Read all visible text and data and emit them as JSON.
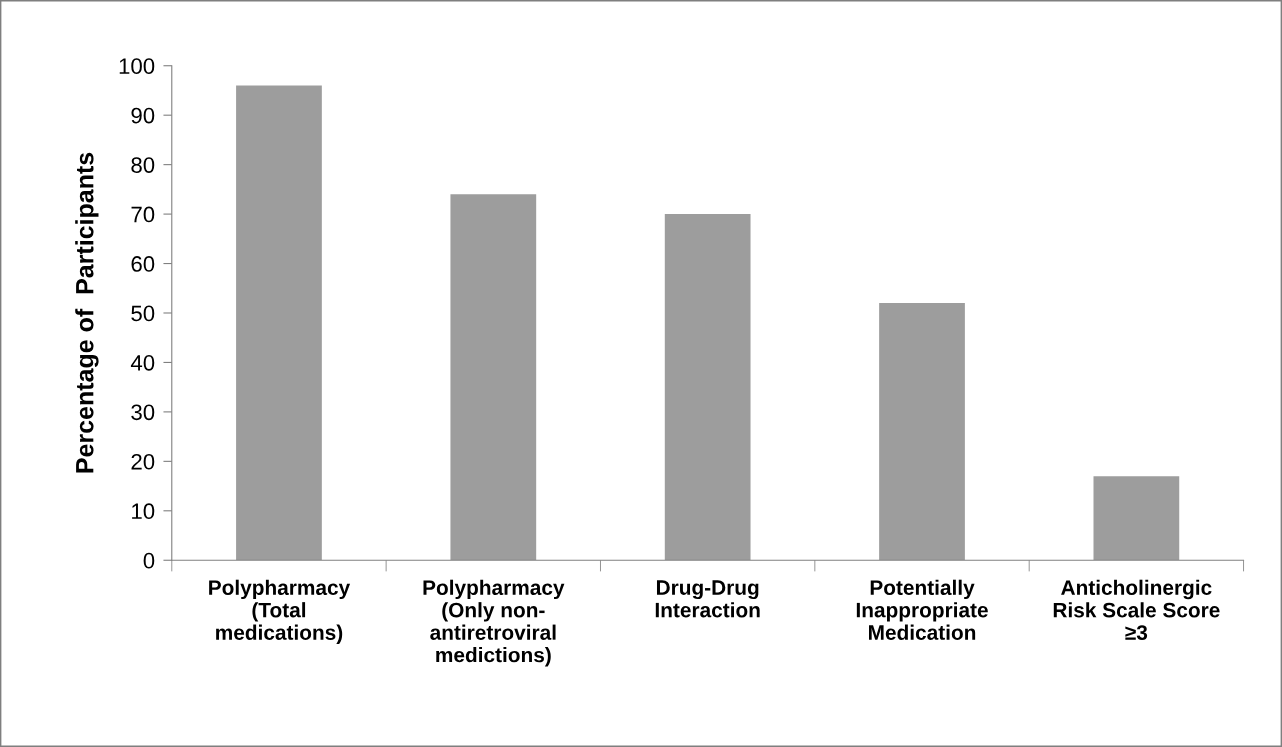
{
  "chart_data": {
    "type": "bar",
    "ylabel": "Percentage of  Participants",
    "categories": [
      "Polypharmacy\n(Total\nmedications)",
      "Polypharmacy\n(Only non-\nantiretroviral\nmedictions)",
      "Drug-Drug\nInteraction",
      "Potentially\nInappropriate\nMedication",
      "Anticholinergic\nRisk Scale Score\n≥3"
    ],
    "values": [
      96,
      74,
      70,
      52,
      17
    ],
    "color": "#9d9d9d",
    "ylim": [
      0,
      100
    ],
    "yticks": [
      0,
      10,
      20,
      30,
      40,
      50,
      60,
      70,
      80,
      90,
      100
    ],
    "grid": false
  }
}
